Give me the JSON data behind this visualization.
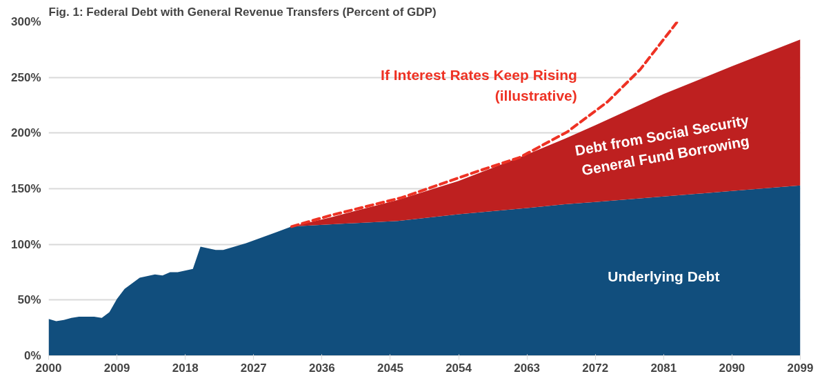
{
  "chart_data": {
    "type": "area",
    "stacked": true,
    "title": "Fig. 1: Federal Debt with General Revenue Transfers (Percent of GDP)",
    "x": [
      2000,
      2001,
      2002,
      2003,
      2004,
      2006,
      2007,
      2008,
      2009,
      2010,
      2012,
      2014,
      2015,
      2016,
      2017,
      2019,
      2020,
      2022,
      2023,
      2026,
      2028,
      2030,
      2032,
      2037,
      2046,
      2054,
      2062,
      2068,
      2072,
      2081,
      2090,
      2099
    ],
    "series": [
      {
        "name": "Underlying Debt",
        "color": "#114e7d",
        "values": [
          33,
          31,
          32,
          34,
          35,
          35,
          34,
          39,
          51,
          60,
          70,
          73,
          72,
          75,
          75,
          78,
          98,
          95,
          95,
          101,
          106,
          111,
          116,
          118,
          121,
          127,
          132,
          136,
          138,
          143,
          148,
          153
        ]
      },
      {
        "name": "Debt from Social Security\nGeneral Fund Borrowing",
        "color": "#be2020",
        "values": [
          null,
          null,
          null,
          null,
          null,
          null,
          null,
          null,
          null,
          null,
          null,
          null,
          null,
          null,
          null,
          null,
          null,
          null,
          null,
          null,
          null,
          null,
          0,
          6,
          19,
          30,
          46,
          59,
          69,
          92,
          112,
          131
        ]
      },
      {
        "name": "If Interest Rates Keep Rising\n(illustrative)",
        "type": "line",
        "line_style": "dashed",
        "color": "#ee3224",
        "x": [
          2032,
          2037.1,
          2046.5,
          2056.2,
          2062,
          2068.3,
          2073.6,
          2077.9,
          2082.8
        ],
        "values": [
          116,
          126,
          142,
          165,
          178,
          201,
          228,
          257,
          300
        ]
      }
    ],
    "xlim": [
      2000,
      2099
    ],
    "xticks": [
      2000,
      2009,
      2018,
      2027,
      2036,
      2045,
      2054,
      2063,
      2072,
      2081,
      2090,
      2099
    ],
    "ylim": [
      0,
      300
    ],
    "yticks": [
      {
        "value": 0,
        "label": "0%"
      },
      {
        "value": 50,
        "label": "50%"
      },
      {
        "value": 100,
        "label": "100%"
      },
      {
        "value": 150,
        "label": "150%"
      },
      {
        "value": 200,
        "label": "200%"
      },
      {
        "value": 250,
        "label": "250%"
      },
      {
        "value": 300,
        "label": "300%"
      }
    ],
    "grid": "y"
  }
}
